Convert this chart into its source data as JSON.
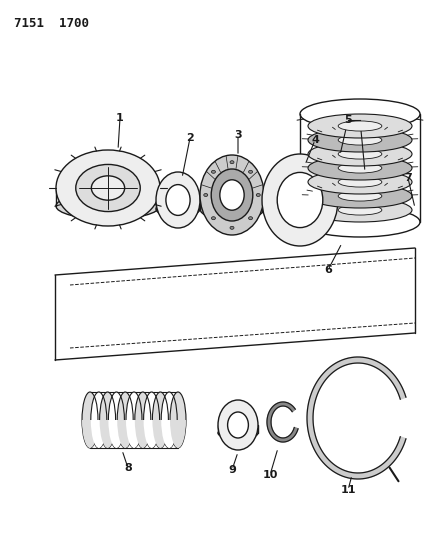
{
  "title": "7151  1700",
  "bg": "#ffffff",
  "lc": "#1a1a1a",
  "fig_w": 4.28,
  "fig_h": 5.33,
  "dpi": 100
}
